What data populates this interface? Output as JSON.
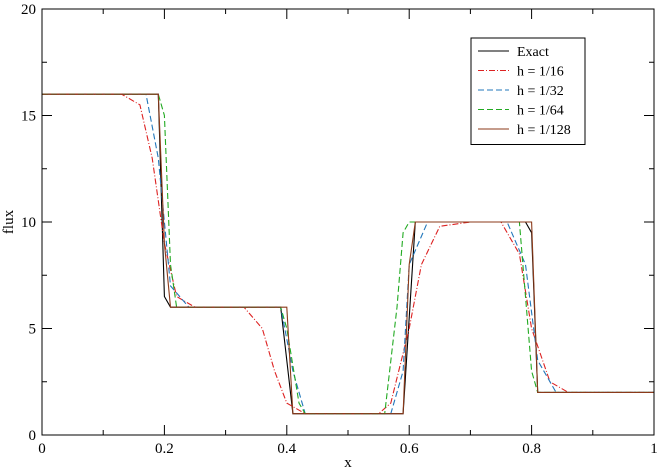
{
  "chart_data": {
    "type": "line",
    "xlabel": "x",
    "ylabel": "flux",
    "xlim": [
      0,
      1
    ],
    "ylim": [
      0,
      20
    ],
    "x_ticks": [
      "0",
      "0.2",
      "0.4",
      "0.6",
      "0.8",
      "1"
    ],
    "y_ticks": [
      "0",
      "5",
      "10",
      "15",
      "20"
    ],
    "legend_position": "top-right",
    "grid": false,
    "series": [
      {
        "name": "Exact",
        "color": "#000000",
        "dash": "solid",
        "points": [
          [
            0,
            16
          ],
          [
            0.19,
            16
          ],
          [
            0.2,
            6.5
          ],
          [
            0.21,
            6
          ],
          [
            0.39,
            6
          ],
          [
            0.41,
            1
          ],
          [
            0.59,
            1
          ],
          [
            0.61,
            10
          ],
          [
            0.79,
            10
          ],
          [
            0.8,
            9.5
          ],
          [
            0.81,
            2
          ],
          [
            1,
            2
          ]
        ]
      },
      {
        "name": "h = 1/16",
        "color": "#dd2222",
        "dash": "dashdot",
        "points": [
          [
            0,
            16
          ],
          [
            0.13,
            16
          ],
          [
            0.16,
            15.5
          ],
          [
            0.18,
            13
          ],
          [
            0.2,
            9
          ],
          [
            0.22,
            6.5
          ],
          [
            0.25,
            6
          ],
          [
            0.33,
            6
          ],
          [
            0.36,
            5
          ],
          [
            0.38,
            3
          ],
          [
            0.4,
            1.5
          ],
          [
            0.43,
            1
          ],
          [
            0.55,
            1
          ],
          [
            0.57,
            1.5
          ],
          [
            0.6,
            5
          ],
          [
            0.62,
            8
          ],
          [
            0.65,
            9.8
          ],
          [
            0.7,
            10
          ],
          [
            0.75,
            10
          ],
          [
            0.78,
            8.5
          ],
          [
            0.8,
            5
          ],
          [
            0.83,
            2.5
          ],
          [
            0.86,
            2
          ],
          [
            1,
            2
          ]
        ]
      },
      {
        "name": "h = 1/32",
        "color": "#2277bb",
        "dash": "dashed",
        "points": [
          [
            0,
            16
          ],
          [
            0.17,
            16
          ],
          [
            0.19,
            13
          ],
          [
            0.21,
            7
          ],
          [
            0.24,
            6
          ],
          [
            0.39,
            6
          ],
          [
            0.41,
            3
          ],
          [
            0.43,
            1
          ],
          [
            0.57,
            1
          ],
          [
            0.59,
            3
          ],
          [
            0.6,
            8
          ],
          [
            0.63,
            10
          ],
          [
            0.76,
            10
          ],
          [
            0.79,
            8
          ],
          [
            0.81,
            3.5
          ],
          [
            0.84,
            2
          ],
          [
            1,
            2
          ]
        ]
      },
      {
        "name": "h = 1/64",
        "color": "#22aa22",
        "dash": "dashed",
        "points": [
          [
            0,
            16
          ],
          [
            0.19,
            16
          ],
          [
            0.2,
            15
          ],
          [
            0.21,
            8
          ],
          [
            0.22,
            6
          ],
          [
            0.39,
            6
          ],
          [
            0.4,
            5
          ],
          [
            0.42,
            1.5
          ],
          [
            0.43,
            1
          ],
          [
            0.56,
            1
          ],
          [
            0.58,
            6
          ],
          [
            0.59,
            9.5
          ],
          [
            0.6,
            10
          ],
          [
            0.78,
            10
          ],
          [
            0.8,
            3
          ],
          [
            0.81,
            2
          ],
          [
            1,
            2
          ]
        ]
      },
      {
        "name": "h = 1/128",
        "color": "#8b3a1a",
        "dash": "solid",
        "points": [
          [
            0,
            16
          ],
          [
            0.19,
            16
          ],
          [
            0.2,
            9
          ],
          [
            0.21,
            6
          ],
          [
            0.4,
            6
          ],
          [
            0.41,
            1
          ],
          [
            0.59,
            1
          ],
          [
            0.6,
            8
          ],
          [
            0.61,
            10
          ],
          [
            0.8,
            10
          ],
          [
            0.81,
            2
          ],
          [
            1,
            2
          ]
        ]
      }
    ]
  }
}
